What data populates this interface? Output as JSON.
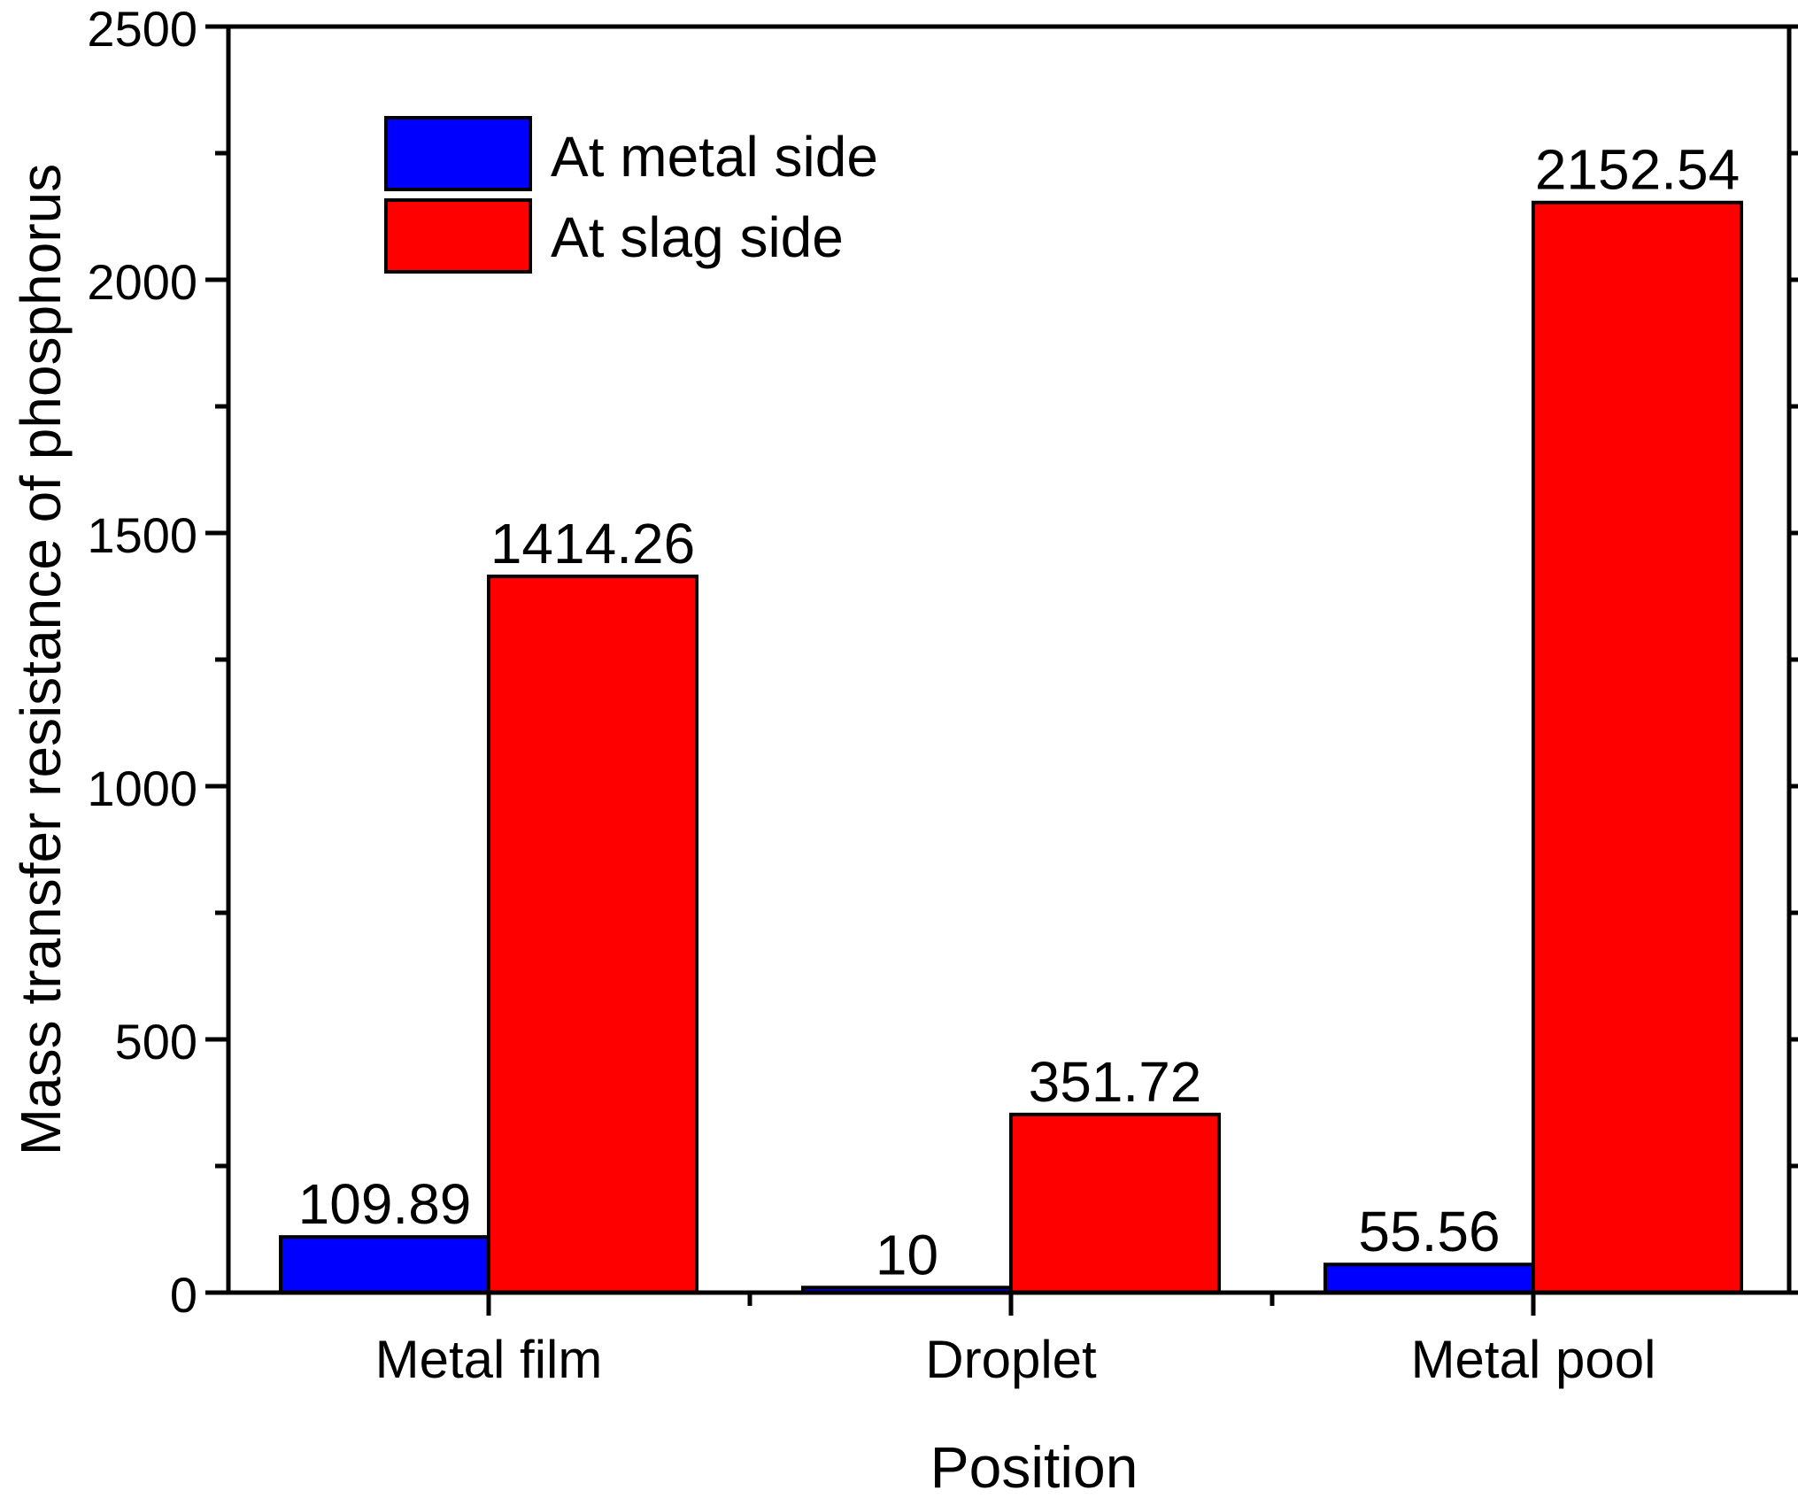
{
  "chart_data": {
    "type": "bar",
    "title": "",
    "xlabel": "Position",
    "ylabel": "Mass transfer resistance of phosphorus",
    "categories": [
      "Metal film",
      "Droplet",
      "Metal pool"
    ],
    "series": [
      {
        "name": "At metal side",
        "values": [
          109.89,
          10,
          55.56
        ],
        "labels": [
          "109.89",
          "10",
          "55.56"
        ],
        "color": "#0000ff"
      },
      {
        "name": "At slag side",
        "values": [
          1414.26,
          351.72,
          2152.54
        ],
        "labels": [
          "1414.26",
          "351.72",
          "2152.54"
        ],
        "color": "#ff0000"
      }
    ],
    "ylim": [
      0,
      2500
    ],
    "yticks": [
      0,
      500,
      1000,
      1500,
      2000,
      2500
    ],
    "ytick_labels": [
      "0",
      "500",
      "1000",
      "1500",
      "2000",
      "2500"
    ],
    "grid": false,
    "legend_position": "top-left"
  }
}
